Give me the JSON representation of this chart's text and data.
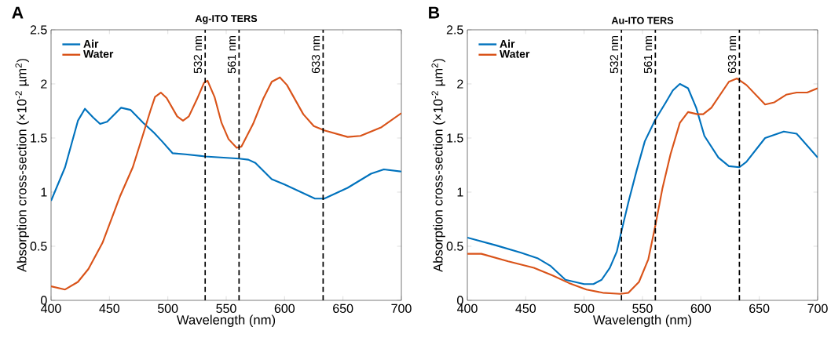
{
  "chart_data": [
    {
      "type": "line",
      "title": "Ag-ITO TERS",
      "xlabel": "Wavelength (nm)",
      "ylabel": "Absorption cross-section (×10$^{-2}$ µm$^{2}$)",
      "annotations": [
        "A"
      ],
      "legend": "top left",
      "xlim": [
        400,
        700
      ],
      "ylim": [
        0,
        2.5
      ],
      "xticks": [
        400,
        450,
        500,
        550,
        600,
        650,
        700
      ],
      "yticks": [
        0,
        0.5,
        1,
        1.5,
        2,
        2.5
      ],
      "ref_lines": [
        {
          "axis": "x",
          "value": 532,
          "label": "532 nm",
          "color": "#000000",
          "line_style": "dashed"
        },
        {
          "axis": "x",
          "value": 561,
          "label": "561 nm",
          "color": "#000000",
          "line_style": "dashed"
        },
        {
          "axis": "x",
          "value": 633,
          "label": "633 nm",
          "color": "#000000",
          "line_style": "dashed"
        }
      ],
      "series": [
        {
          "name": "Air",
          "color": "#0072bd",
          "x": [
            400,
            412,
            423,
            429,
            436,
            442,
            448,
            460,
            468,
            479,
            488,
            495,
            504,
            515,
            532,
            561,
            569,
            575,
            589,
            600,
            626,
            634,
            654,
            674,
            685,
            700
          ],
          "values": [
            0.92,
            1.23,
            1.66,
            1.77,
            1.69,
            1.63,
            1.65,
            1.78,
            1.76,
            1.64,
            1.55,
            1.47,
            1.36,
            1.35,
            1.33,
            1.31,
            1.3,
            1.27,
            1.12,
            1.07,
            0.94,
            0.94,
            1.04,
            1.17,
            1.21,
            1.19
          ]
        },
        {
          "name": "Water",
          "color": "#d95319",
          "x": [
            400,
            412,
            423,
            432,
            444,
            459,
            470,
            479,
            485,
            489,
            494,
            499,
            508,
            513,
            518,
            525,
            531,
            534,
            540,
            546,
            552,
            559,
            563,
            573,
            582,
            589,
            596,
            602,
            616,
            625,
            634,
            654,
            665,
            683,
            700
          ],
          "values": [
            0.13,
            0.1,
            0.17,
            0.29,
            0.53,
            0.96,
            1.23,
            1.54,
            1.75,
            1.88,
            1.92,
            1.87,
            1.7,
            1.66,
            1.7,
            1.86,
            2.01,
            2.03,
            1.88,
            1.64,
            1.49,
            1.41,
            1.42,
            1.63,
            1.87,
            2.02,
            2.06,
            1.99,
            1.72,
            1.61,
            1.57,
            1.51,
            1.52,
            1.6,
            1.73
          ]
        }
      ]
    },
    {
      "type": "line",
      "title": "Au-ITO TERS",
      "xlabel": "Wavelength (nm)",
      "ylabel": "Absorption cross-section (×10$^{-2}$ µm$^{2}$)",
      "annotations": [
        "B"
      ],
      "legend": "top left",
      "xlim": [
        400,
        700
      ],
      "ylim": [
        0,
        2.5
      ],
      "xticks": [
        400,
        450,
        500,
        550,
        600,
        650,
        700
      ],
      "yticks": [
        0,
        0.5,
        1,
        1.5,
        2,
        2.5
      ],
      "ref_lines": [
        {
          "axis": "x",
          "value": 532,
          "label": "532 nm",
          "color": "#000000",
          "line_style": "dashed"
        },
        {
          "axis": "x",
          "value": 561,
          "label": "561 nm",
          "color": "#000000",
          "line_style": "dashed"
        },
        {
          "axis": "x",
          "value": 633,
          "label": "633 nm",
          "color": "#000000",
          "line_style": "dashed"
        }
      ],
      "series": [
        {
          "name": "Air",
          "color": "#0072bd",
          "x": [
            400,
            424,
            446,
            460,
            471,
            484,
            500,
            508,
            515,
            522,
            528,
            532,
            538,
            545,
            552,
            561,
            570,
            576,
            582,
            589,
            596,
            603,
            615,
            624,
            633,
            639,
            655,
            671,
            682,
            700
          ],
          "values": [
            0.58,
            0.51,
            0.44,
            0.39,
            0.32,
            0.19,
            0.15,
            0.15,
            0.19,
            0.3,
            0.45,
            0.64,
            0.91,
            1.2,
            1.47,
            1.67,
            1.83,
            1.94,
            2.0,
            1.96,
            1.78,
            1.52,
            1.32,
            1.24,
            1.23,
            1.28,
            1.5,
            1.56,
            1.54,
            1.32
          ]
        },
        {
          "name": "Water",
          "color": "#d95319",
          "x": [
            400,
            412,
            435,
            457,
            473,
            487,
            502,
            516,
            531,
            538,
            547,
            555,
            561,
            567,
            574,
            582,
            589,
            597,
            602,
            609,
            624,
            631,
            639,
            655,
            663,
            673,
            682,
            691,
            700
          ],
          "values": [
            0.43,
            0.43,
            0.36,
            0.3,
            0.23,
            0.16,
            0.1,
            0.07,
            0.06,
            0.07,
            0.17,
            0.38,
            0.69,
            1.03,
            1.35,
            1.64,
            1.74,
            1.72,
            1.72,
            1.78,
            2.02,
            2.05,
            1.99,
            1.81,
            1.83,
            1.9,
            1.92,
            1.92,
            1.96
          ]
        }
      ]
    }
  ]
}
